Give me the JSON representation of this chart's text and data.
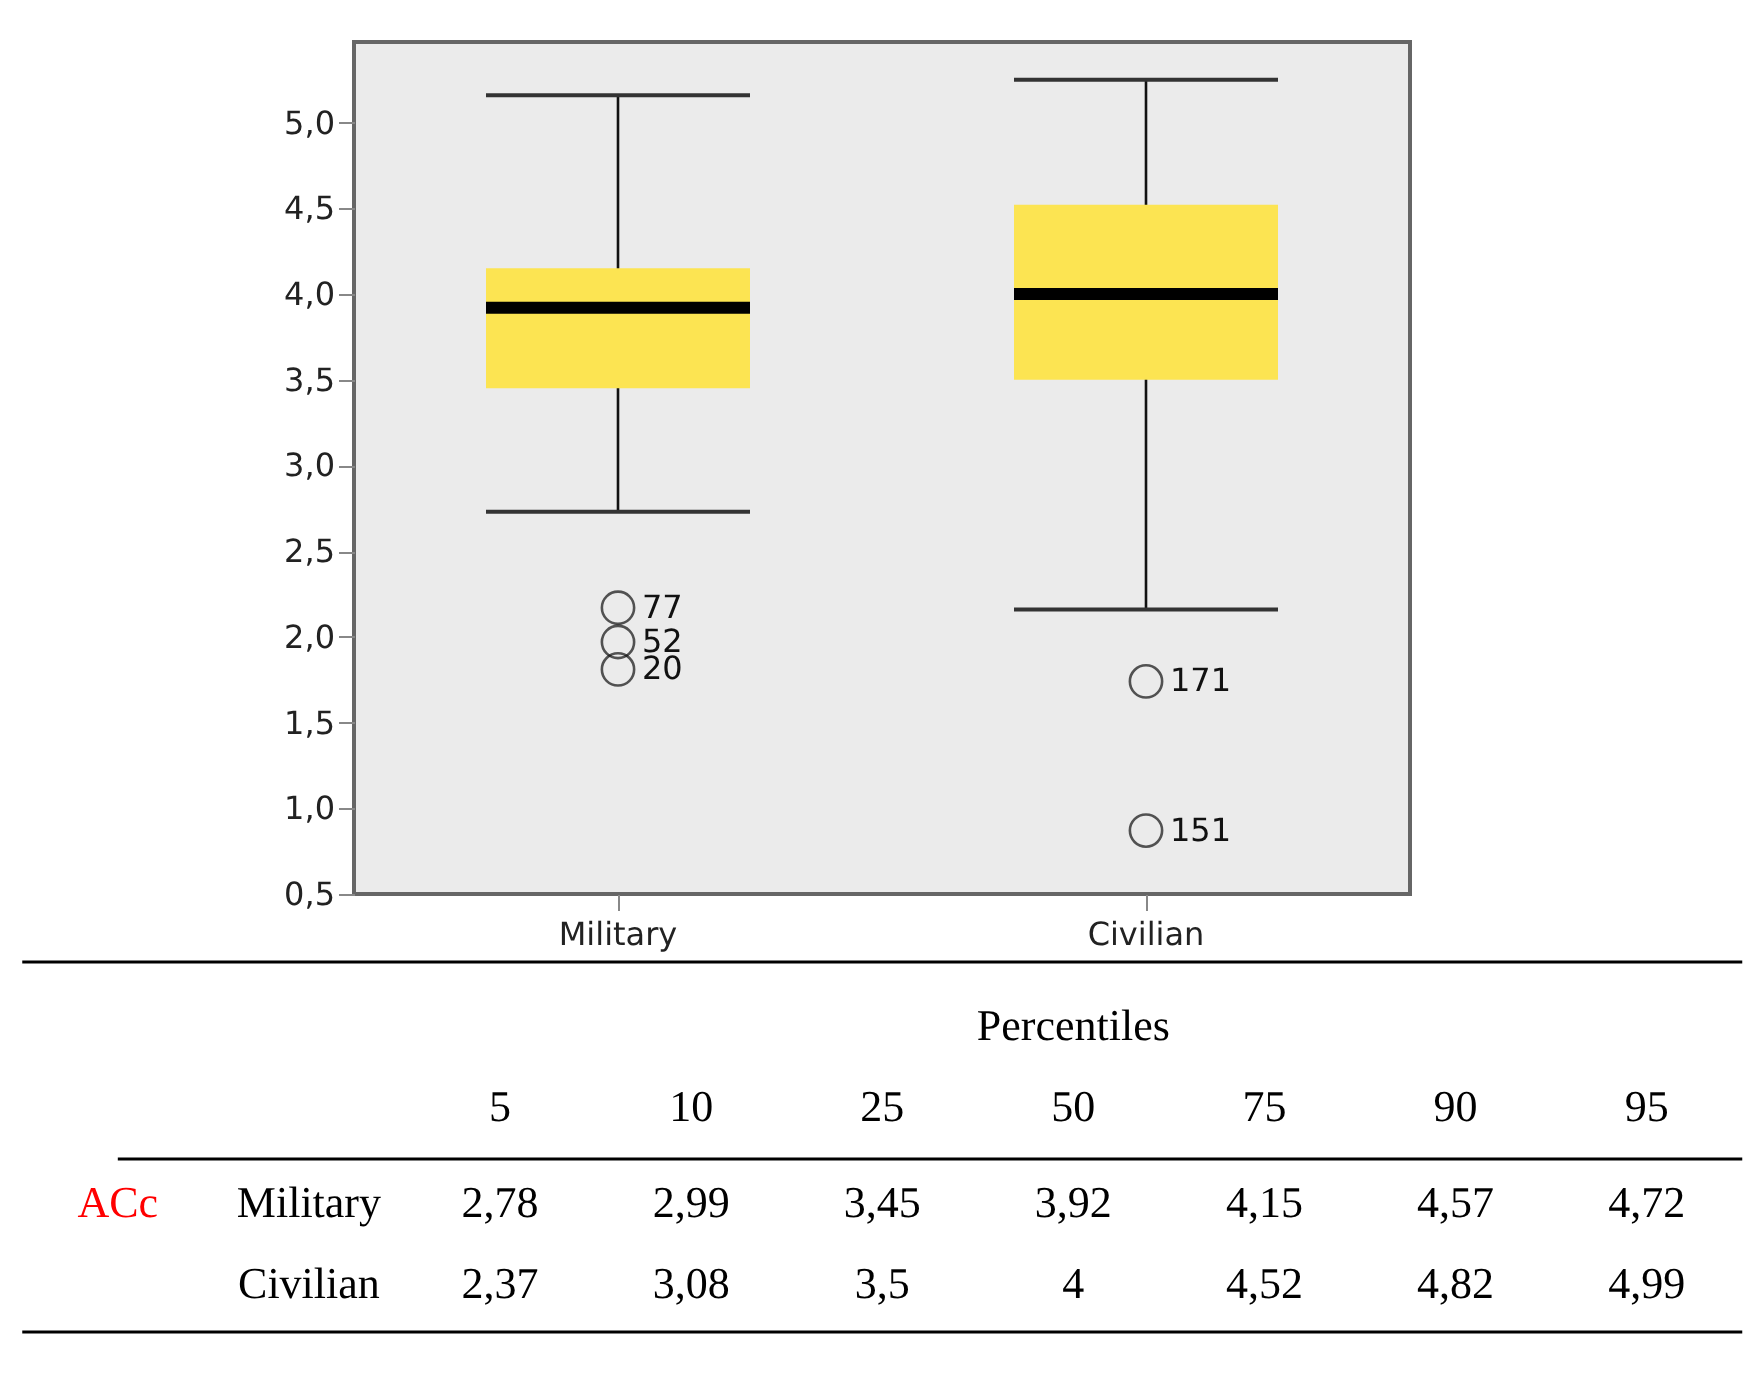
{
  "chart_data": [
    {
      "type": "box",
      "categories": [
        "Military",
        "Civilian"
      ],
      "series": [
        {
          "color": "#fce452",
          "boxes": [
            {
              "low": 2.73,
              "q1": 3.45,
              "median": 3.92,
              "q3": 4.15,
              "high": 5.16,
              "outliers": [
                2.17,
                1.97,
                1.81
              ]
            },
            {
              "low": 2.16,
              "q1": 3.5,
              "median": 4,
              "q3": 4.52,
              "high": 5.25,
              "outliers": [
                1.74,
                0.87
              ]
            }
          ]
        }
      ],
      "ylim": [
        0.5,
        5.47
      ],
      "yticks": [
        {
          "value": 0.5,
          "label": "0,5"
        },
        {
          "value": 1,
          "label": "1,0"
        },
        {
          "value": 1.5,
          "label": "1,5"
        },
        {
          "value": 2,
          "label": "2,0"
        },
        {
          "value": 2.5,
          "label": "2,5"
        },
        {
          "value": 3,
          "label": "3,0"
        },
        {
          "value": 3.5,
          "label": "3,5"
        },
        {
          "value": 4,
          "label": "4,0"
        },
        {
          "value": 4.5,
          "label": "4,5"
        },
        {
          "value": 5,
          "label": "5,0"
        }
      ],
      "grid": false,
      "annotations": [
        "77",
        "52",
        "20",
        "171",
        "151"
      ]
    },
    {
      "type": "other",
      "title": "Percentiles",
      "categories": [
        "5",
        "10",
        "25",
        "50",
        "75",
        "90",
        "95"
      ],
      "y_categories": [
        "Military",
        "Civilian"
      ],
      "cell_labels": [
        [
          "2,78",
          "2,99",
          "3,45",
          "3,92",
          "4,15",
          "4,57",
          "4,72"
        ],
        [
          "2,37",
          "3,08",
          "3,5",
          "4",
          "4,52",
          "4,82",
          "4,99"
        ]
      ],
      "annotations": [
        "ACc"
      ]
    }
  ]
}
